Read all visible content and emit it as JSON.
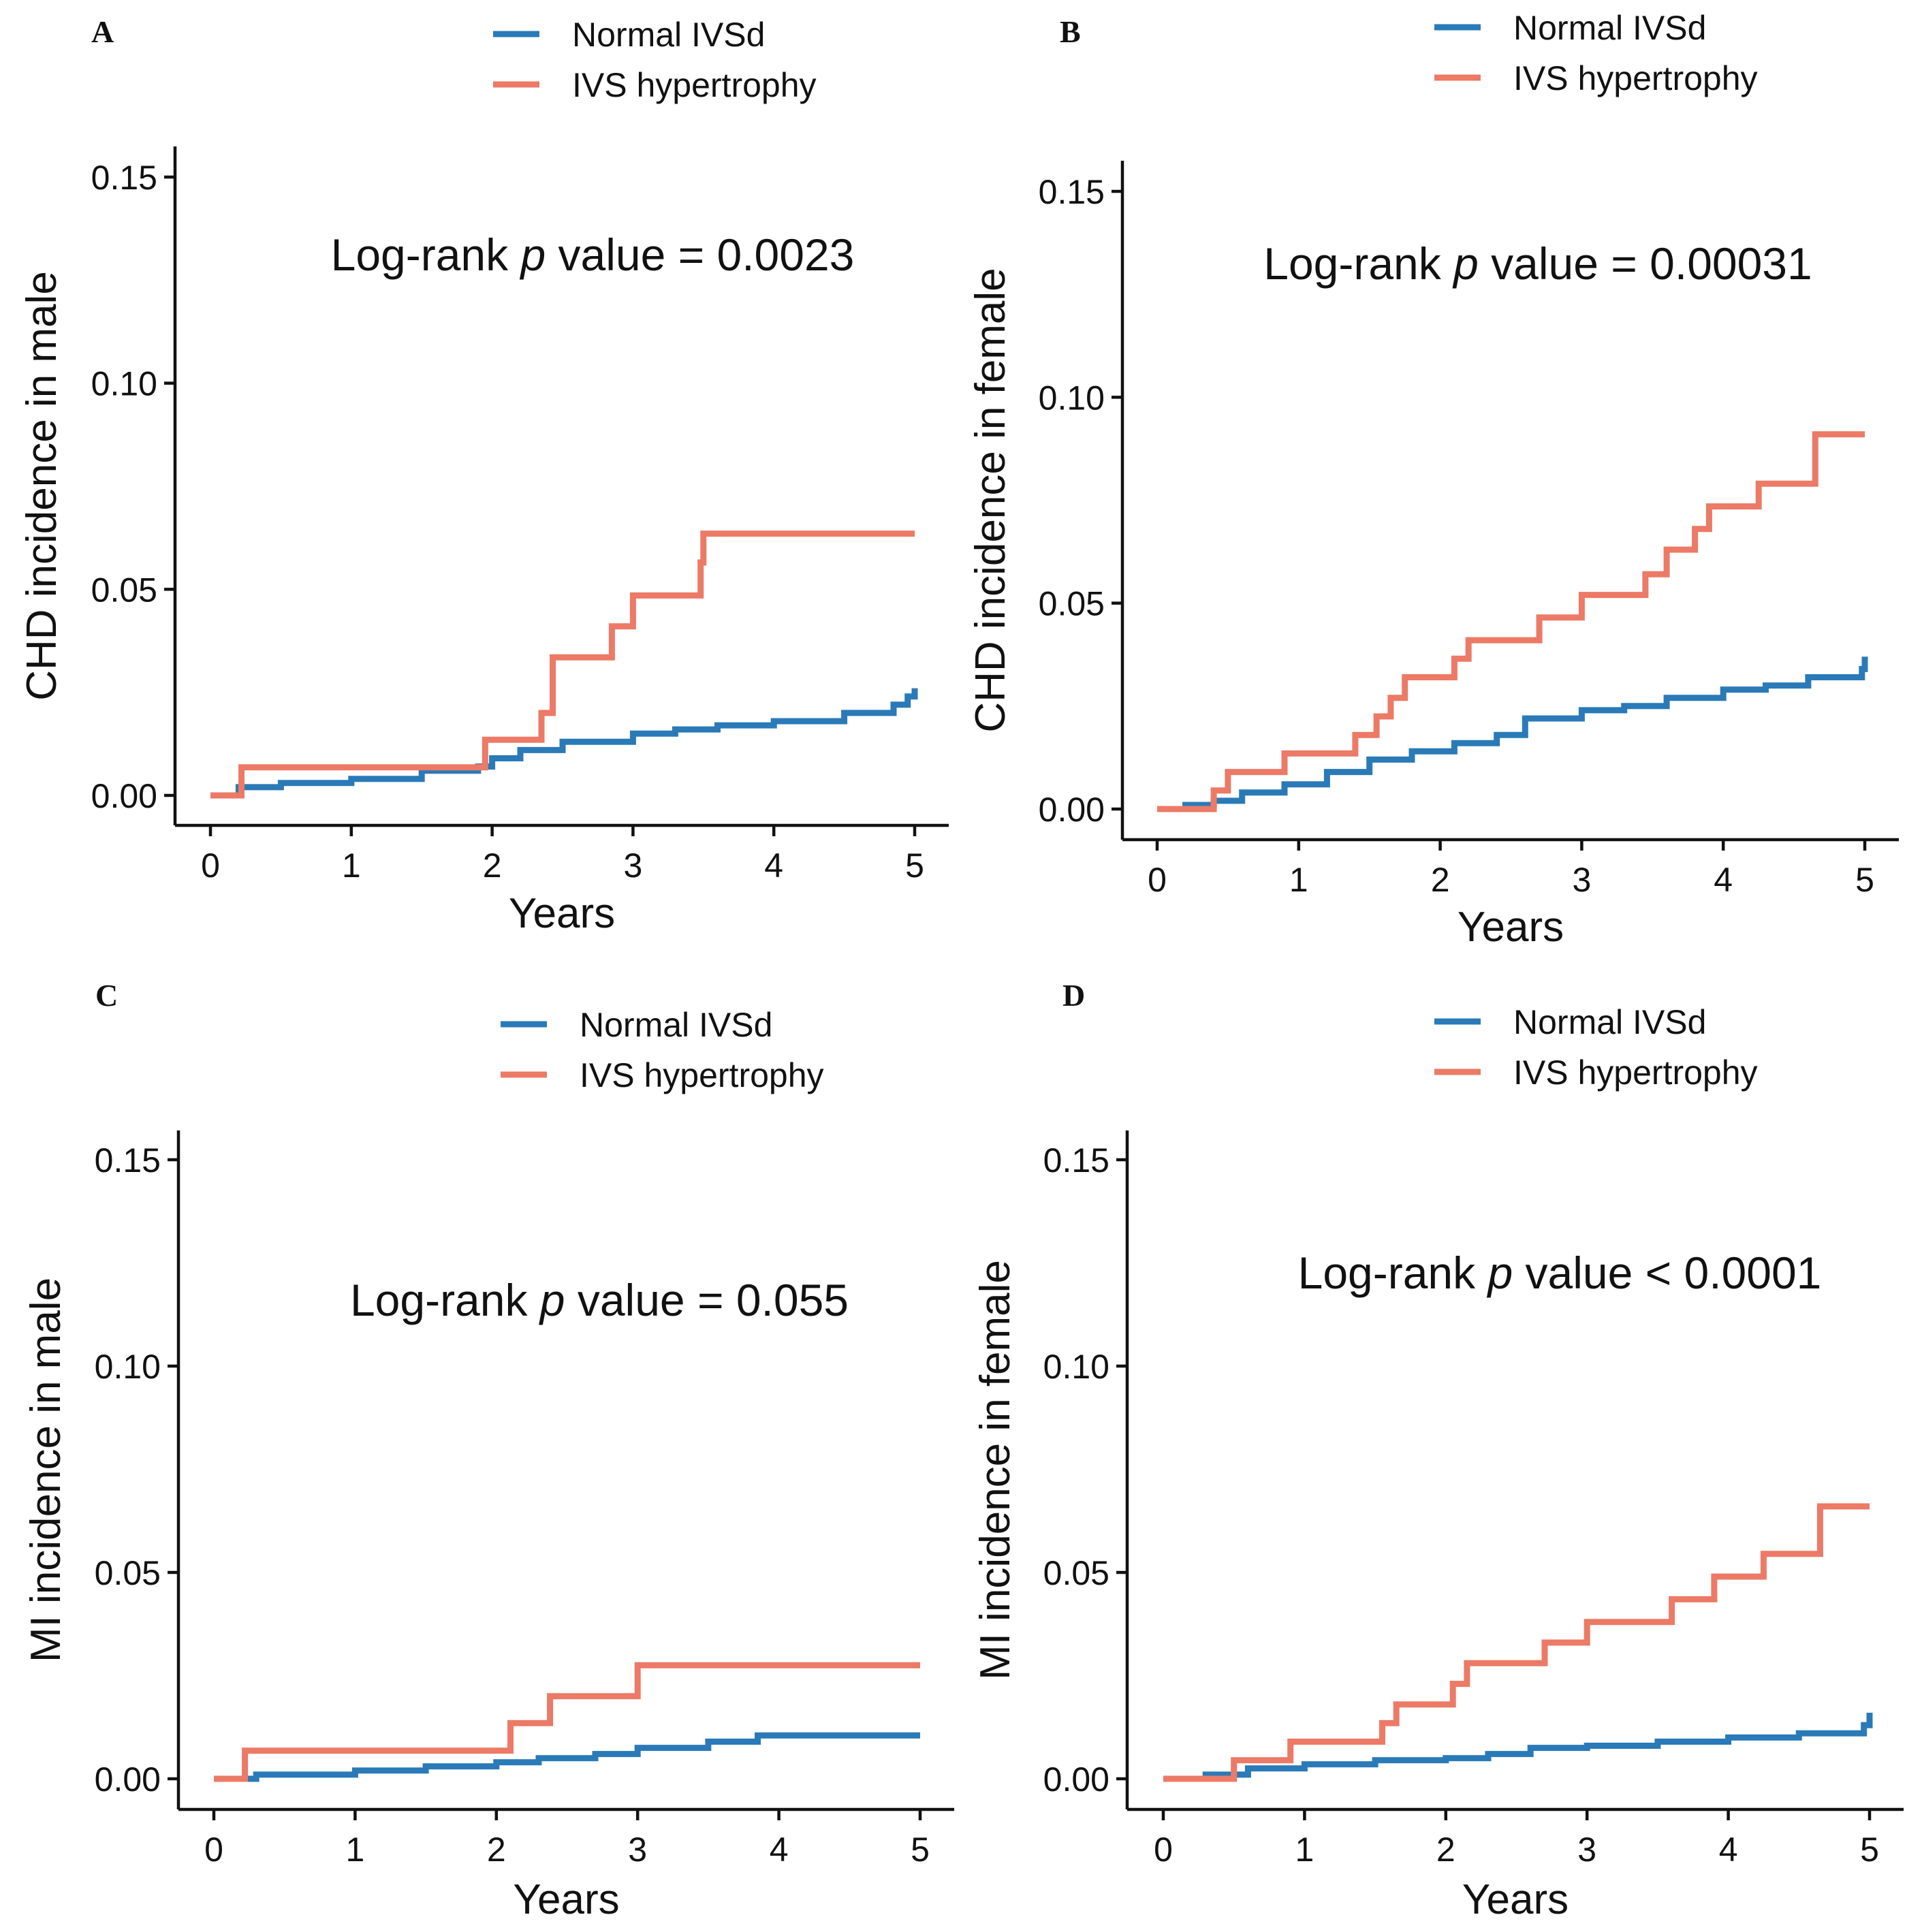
{
  "colors": {
    "normal": "#2a7ab8",
    "hypertrophy": "#ec7a66"
  },
  "chart_data": [
    {
      "type": "line",
      "panel": "A",
      "xlabel": "Years",
      "ylabel": "CHD incidence in male",
      "annotation": {
        "prefix": "Log-rank ",
        "italic": "p",
        "suffix": " value = 0.0023"
      },
      "xlim": [
        0,
        5
      ],
      "ylim": [
        0,
        0.15
      ],
      "xticks": [
        "0",
        "1",
        "2",
        "3",
        "4",
        "5"
      ],
      "yticks": [
        "0.00",
        "0.05",
        "0.10",
        "0.15"
      ],
      "legend": [
        "Normal IVSd",
        "IVS hypertrophy"
      ],
      "series": [
        {
          "name": "Normal IVSd",
          "color_key": "normal",
          "x": [
            0,
            0.17,
            0.2,
            0.5,
            1.0,
            1.5,
            1.9,
            2.0,
            2.2,
            2.5,
            3.0,
            3.3,
            3.6,
            4.0,
            4.5,
            4.85,
            4.95,
            5.0
          ],
          "y": [
            0,
            0,
            0.002,
            0.003,
            0.004,
            0.006,
            0.007,
            0.009,
            0.011,
            0.013,
            0.015,
            0.016,
            0.017,
            0.018,
            0.02,
            0.022,
            0.024,
            0.026
          ]
        },
        {
          "name": "IVS hypertrophy",
          "color_key": "hypertrophy",
          "x": [
            0,
            0.22,
            1.95,
            2.35,
            2.43,
            2.85,
            3.0,
            3.48,
            3.5,
            5.0
          ],
          "y": [
            0,
            0.0068,
            0.0135,
            0.02,
            0.0335,
            0.041,
            0.0485,
            0.0565,
            0.0635,
            0.0635
          ]
        }
      ]
    },
    {
      "type": "line",
      "panel": "B",
      "xlabel": "Years",
      "ylabel": "CHD incidence in female",
      "annotation": {
        "prefix": "Log-rank ",
        "italic": "p",
        "suffix": " value = 0.00031"
      },
      "xlim": [
        0,
        5
      ],
      "ylim": [
        0,
        0.15
      ],
      "xticks": [
        "0",
        "1",
        "2",
        "3",
        "4",
        "5"
      ],
      "yticks": [
        "0.00",
        "0.05",
        "0.10",
        "0.15"
      ],
      "legend": [
        "Normal IVSd",
        "IVS hypertrophy"
      ],
      "series": [
        {
          "name": "Normal IVSd",
          "color_key": "normal",
          "x": [
            0,
            0.2,
            0.4,
            0.6,
            0.9,
            1.2,
            1.5,
            1.8,
            2.1,
            2.4,
            2.6,
            3.0,
            3.3,
            3.6,
            4.0,
            4.3,
            4.6,
            4.98,
            5.0
          ],
          "y": [
            0,
            0.001,
            0.002,
            0.004,
            0.006,
            0.009,
            0.012,
            0.014,
            0.016,
            0.018,
            0.022,
            0.024,
            0.025,
            0.027,
            0.029,
            0.03,
            0.032,
            0.034,
            0.037
          ]
        },
        {
          "name": "IVS hypertrophy",
          "color_key": "hypertrophy",
          "x": [
            0,
            0.4,
            0.5,
            0.9,
            1.4,
            1.55,
            1.65,
            1.75,
            2.1,
            2.2,
            2.7,
            3.0,
            3.45,
            3.6,
            3.8,
            3.9,
            4.25,
            4.65,
            5.0
          ],
          "y": [
            0,
            0.0045,
            0.009,
            0.0135,
            0.018,
            0.0225,
            0.027,
            0.032,
            0.0365,
            0.041,
            0.0465,
            0.052,
            0.057,
            0.063,
            0.068,
            0.0735,
            0.079,
            0.091,
            0.091
          ]
        }
      ]
    },
    {
      "type": "line",
      "panel": "C",
      "xlabel": "Years",
      "ylabel": "MI incidence in male",
      "annotation": {
        "prefix": "Log-rank ",
        "italic": "p",
        "suffix": " value = 0.055"
      },
      "xlim": [
        0,
        5
      ],
      "ylim": [
        0,
        0.15
      ],
      "xticks": [
        "0",
        "1",
        "2",
        "3",
        "4",
        "5"
      ],
      "yticks": [
        "0.00",
        "0.05",
        "0.10",
        "0.15"
      ],
      "legend": [
        "Normal IVSd",
        "IVS hypertrophy"
      ],
      "series": [
        {
          "name": "Normal IVSd",
          "color_key": "normal",
          "x": [
            0,
            0.3,
            1.0,
            1.5,
            2.0,
            2.3,
            2.7,
            3.0,
            3.5,
            3.85,
            5.0
          ],
          "y": [
            0,
            0.001,
            0.002,
            0.003,
            0.004,
            0.005,
            0.006,
            0.0075,
            0.009,
            0.0105,
            0.0105
          ]
        },
        {
          "name": "IVS hypertrophy",
          "color_key": "hypertrophy",
          "x": [
            0,
            0.22,
            2.1,
            2.38,
            3.0,
            5.0
          ],
          "y": [
            0,
            0.0068,
            0.0135,
            0.02,
            0.0275,
            0.0275
          ]
        }
      ]
    },
    {
      "type": "line",
      "panel": "D",
      "xlabel": "Years",
      "ylabel": "MI incidence in female",
      "annotation": {
        "prefix": "Log-rank ",
        "italic": "p",
        "suffix": " value < 0.0001"
      },
      "xlim": [
        0,
        5
      ],
      "ylim": [
        0,
        0.15
      ],
      "xticks": [
        "0",
        "1",
        "2",
        "3",
        "4",
        "5"
      ],
      "yticks": [
        "0.00",
        "0.05",
        "0.10",
        "0.15"
      ],
      "legend": [
        "Normal IVSd",
        "IVS hypertrophy"
      ],
      "series": [
        {
          "name": "Normal IVSd",
          "color_key": "normal",
          "x": [
            0,
            0.3,
            0.6,
            1.0,
            1.5,
            2.0,
            2.3,
            2.6,
            3.0,
            3.5,
            4.0,
            4.5,
            4.96,
            5.0
          ],
          "y": [
            0,
            0.001,
            0.0025,
            0.0035,
            0.0045,
            0.005,
            0.006,
            0.0075,
            0.008,
            0.009,
            0.01,
            0.011,
            0.013,
            0.016
          ]
        },
        {
          "name": "IVS hypertrophy",
          "color_key": "hypertrophy",
          "x": [
            0,
            0.5,
            0.9,
            1.55,
            1.65,
            2.05,
            2.15,
            2.7,
            3.0,
            3.6,
            3.9,
            4.25,
            4.65,
            5.0
          ],
          "y": [
            0,
            0.0045,
            0.009,
            0.0135,
            0.018,
            0.023,
            0.028,
            0.033,
            0.038,
            0.0435,
            0.049,
            0.0545,
            0.066,
            0.066
          ]
        }
      ]
    }
  ]
}
